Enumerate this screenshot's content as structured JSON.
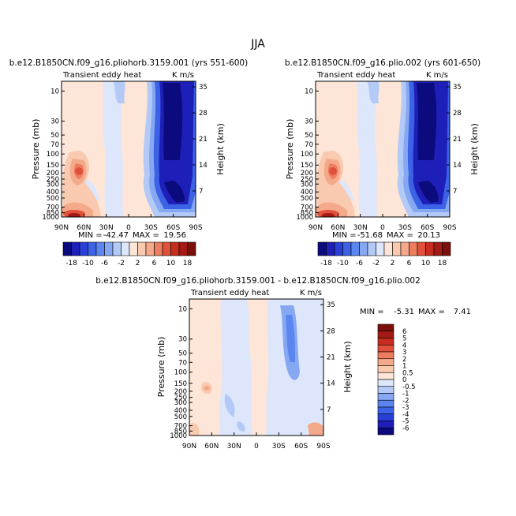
{
  "figure": {
    "title": "JJA"
  },
  "panels": [
    {
      "id": "left",
      "title": "b.e12.B1850CN.f09_g16.pliohorb.3159.001 (yrs 551-600)",
      "left_string": "Transient eddy heat",
      "right_string": "K m/s",
      "stats": {
        "min_label": "MIN =",
        "min_value": "-42.47",
        "max_label": "MAX =",
        "max_value": "19.56"
      }
    },
    {
      "id": "right",
      "title": "b.e12.B1850CN.f09_g16.plio.002 (yrs 601-650)",
      "left_string": "Transient eddy heat",
      "right_string": "K m/s",
      "stats": {
        "min_label": "MIN =",
        "min_value": "-51.68",
        "max_label": "MAX =",
        "max_value": "20.13"
      }
    },
    {
      "id": "diff",
      "title": "b.e12.B1850CN.f09_g16.pliohorb.3159.001 - b.e12.B1850CN.f09_g16.plio.002",
      "left_string": "Transient eddy heat",
      "right_string": "K m/s",
      "stats": {
        "min_label": "MIN =",
        "min_value": "-5.31",
        "max_label": "MAX =",
        "max_value": "7.41"
      }
    }
  ],
  "axes": {
    "ylabel": "Pressure (mb)",
    "ylabel_right": "Height (km)",
    "x_ticks": [
      "90N",
      "60N",
      "30N",
      "0",
      "30S",
      "60S",
      "90S"
    ],
    "y_ticks": [
      "10",
      "30",
      "50",
      "70",
      "100",
      "150",
      "200",
      "250",
      "300",
      "400",
      "500",
      "700",
      "850",
      "1000"
    ],
    "height_ticks": [
      "7",
      "14",
      "21",
      "28",
      "35"
    ]
  },
  "colorbars": {
    "panel": {
      "labels": [
        "-18",
        "-10",
        "-6",
        "-2",
        "2",
        "6",
        "10",
        "18"
      ],
      "colors": [
        "#0b0b7e",
        "#1e1eb8",
        "#2a3fd8",
        "#3c62e6",
        "#5b86ef",
        "#86a8f2",
        "#b3c9f6",
        "#dde6fb",
        "#fde6d8",
        "#f9c9b0",
        "#f4a98a",
        "#ec7e5f",
        "#e0503a",
        "#c72d1f",
        "#a31b14",
        "#7b0f0a"
      ]
    },
    "diff": {
      "labels": [
        "6",
        "5",
        "4",
        "3",
        "2",
        "1",
        "0.5",
        "0",
        "-0.5",
        "-1",
        "-2",
        "-3",
        "-4",
        "-5",
        "-6"
      ],
      "colors": [
        "#7b0f0a",
        "#a31b14",
        "#c72d1f",
        "#e0503a",
        "#ec7e5f",
        "#f4a98a",
        "#f9c9b0",
        "#fde6d8",
        "#dde6fb",
        "#b3c9f6",
        "#86a8f2",
        "#5b86ef",
        "#3c62e6",
        "#2a3fd8",
        "#1e1eb8",
        "#0b0b7e"
      ]
    }
  },
  "chart_data": [
    {
      "type": "heatmap",
      "panel": "left",
      "title": "b.e12.B1850CN.f09_g16.pliohorb.3159.001 (yrs 551-600)",
      "variable": "Transient eddy heat",
      "units": "K m/s",
      "x": [
        "90N",
        "60N",
        "30N",
        "0",
        "30S",
        "60S",
        "90S"
      ],
      "y_pressure_mb": [
        10,
        30,
        50,
        70,
        100,
        150,
        200,
        250,
        300,
        400,
        500,
        700,
        850,
        1000
      ],
      "min": -42.47,
      "max": 19.56
    },
    {
      "type": "heatmap",
      "panel": "right",
      "title": "b.e12.B1850CN.f09_g16.plio.002 (yrs 601-650)",
      "variable": "Transient eddy heat",
      "units": "K m/s",
      "x": [
        "90N",
        "60N",
        "30N",
        "0",
        "30S",
        "60S",
        "90S"
      ],
      "y_pressure_mb": [
        10,
        30,
        50,
        70,
        100,
        150,
        200,
        250,
        300,
        400,
        500,
        700,
        850,
        1000
      ],
      "min": -51.68,
      "max": 20.13
    },
    {
      "type": "heatmap",
      "panel": "diff",
      "title": "b.e12.B1850CN.f09_g16.pliohorb.3159.001 - b.e12.B1850CN.f09_g16.plio.002",
      "variable": "Transient eddy heat",
      "units": "K m/s",
      "x": [
        "90N",
        "60N",
        "30N",
        "0",
        "30S",
        "60S",
        "90S"
      ],
      "y_pressure_mb": [
        10,
        30,
        50,
        70,
        100,
        150,
        200,
        250,
        300,
        400,
        500,
        700,
        850,
        1000
      ],
      "min": -5.31,
      "max": 7.41
    }
  ]
}
